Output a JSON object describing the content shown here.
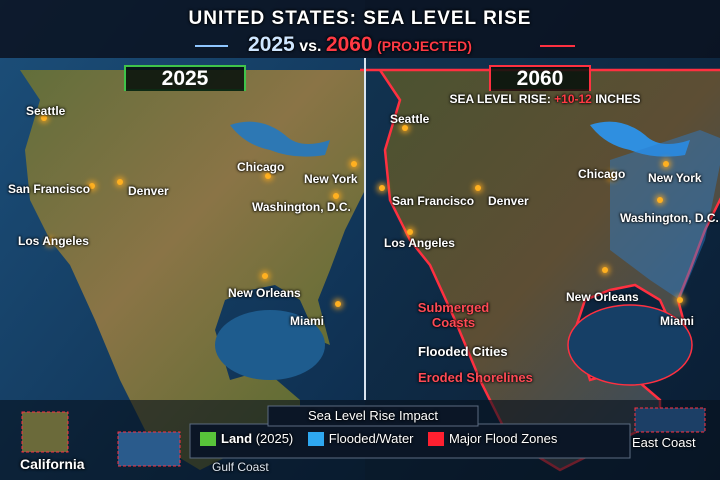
{
  "header": {
    "title": "UNITED STATES: SEA LEVEL RISE",
    "year_a": "2025",
    "vs": "vs.",
    "year_b": "2060",
    "projected": "(PROJECTED)"
  },
  "left_panel": {
    "label": "2025",
    "cities": [
      "Seattle",
      "San Francisco",
      "Denver",
      "Chicago",
      "New York",
      "Washington, D.C.",
      "Los Angeles",
      "New Orleans",
      "Miami"
    ]
  },
  "right_panel": {
    "label": "2060",
    "rise_prefix": "SEA LEVEL RISE:",
    "rise_value": "+10-12",
    "rise_unit": "INCHES",
    "cities": [
      "Seattle",
      "San Francisco",
      "Denver",
      "Chicago",
      "New York",
      "Washington, D.C.",
      "Los Angeles",
      "New Orleans",
      "Miami"
    ],
    "annotations": [
      "Submerged Coasts",
      "Flooded Cities",
      "Eroded Shorelines"
    ]
  },
  "legend": {
    "title": "Sea Level Rise Impact",
    "items": [
      {
        "label": "Land",
        "note": "(2025)"
      },
      {
        "label": "Flooded/Water"
      },
      {
        "label": "Major Flood Zones"
      }
    ]
  },
  "insets": [
    "California",
    "Gulf Coast",
    "East Coast"
  ]
}
